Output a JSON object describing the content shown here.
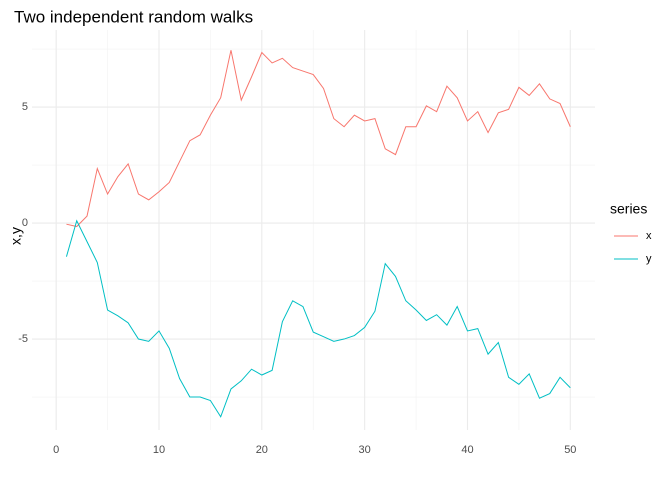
{
  "chart_data": {
    "type": "line",
    "title": "Two independent random walks",
    "y_label": "x,y",
    "legend_title": "series",
    "x": [
      1,
      2,
      3,
      4,
      5,
      6,
      7,
      8,
      9,
      10,
      11,
      12,
      13,
      14,
      15,
      16,
      17,
      18,
      19,
      20,
      21,
      22,
      23,
      24,
      25,
      26,
      27,
      28,
      29,
      30,
      31,
      32,
      33,
      34,
      35,
      36,
      37,
      38,
      39,
      40,
      41,
      42,
      43,
      44,
      45,
      46,
      47,
      48,
      49,
      50
    ],
    "series": [
      {
        "name": "x",
        "color": "#F8766D",
        "values": [
          -0.05,
          -0.15,
          0.3,
          2.35,
          1.25,
          2.0,
          2.55,
          1.25,
          1.0,
          1.35,
          1.75,
          2.65,
          3.55,
          3.8,
          4.65,
          5.4,
          7.45,
          5.3,
          6.3,
          7.35,
          6.9,
          7.1,
          6.7,
          6.55,
          6.4,
          5.8,
          4.5,
          4.15,
          4.65,
          4.4,
          4.5,
          3.2,
          2.95,
          4.15,
          4.15,
          5.05,
          4.8,
          5.9,
          5.4,
          4.4,
          4.8,
          3.9,
          4.75,
          4.9,
          5.85,
          5.5,
          6.0,
          5.35,
          5.15,
          4.15
        ]
      },
      {
        "name": "y",
        "color": "#00BFC4",
        "values": [
          -1.45,
          0.1,
          -0.8,
          -1.7,
          -3.75,
          -4.0,
          -4.3,
          -5.0,
          -5.1,
          -4.65,
          -5.4,
          -6.7,
          -7.5,
          -7.5,
          -7.65,
          -8.35,
          -7.15,
          -6.8,
          -6.3,
          -6.55,
          -6.35,
          -4.25,
          -3.35,
          -3.6,
          -4.7,
          -4.9,
          -5.1,
          -5.0,
          -4.85,
          -4.5,
          -3.8,
          -1.75,
          -2.3,
          -3.35,
          -3.75,
          -4.2,
          -3.95,
          -4.4,
          -3.6,
          -4.65,
          -4.55,
          -5.65,
          -5.15,
          -6.65,
          -6.95,
          -6.5,
          -7.55,
          -7.35,
          -6.65,
          -7.1
        ]
      }
    ],
    "xlim": [
      -2.35,
      52.4
    ],
    "xticks": [
      0,
      10,
      20,
      30,
      40,
      50
    ],
    "ylim": [
      -8.92,
      8.32
    ],
    "yticks": [
      -5,
      0,
      5
    ],
    "grid": true
  }
}
